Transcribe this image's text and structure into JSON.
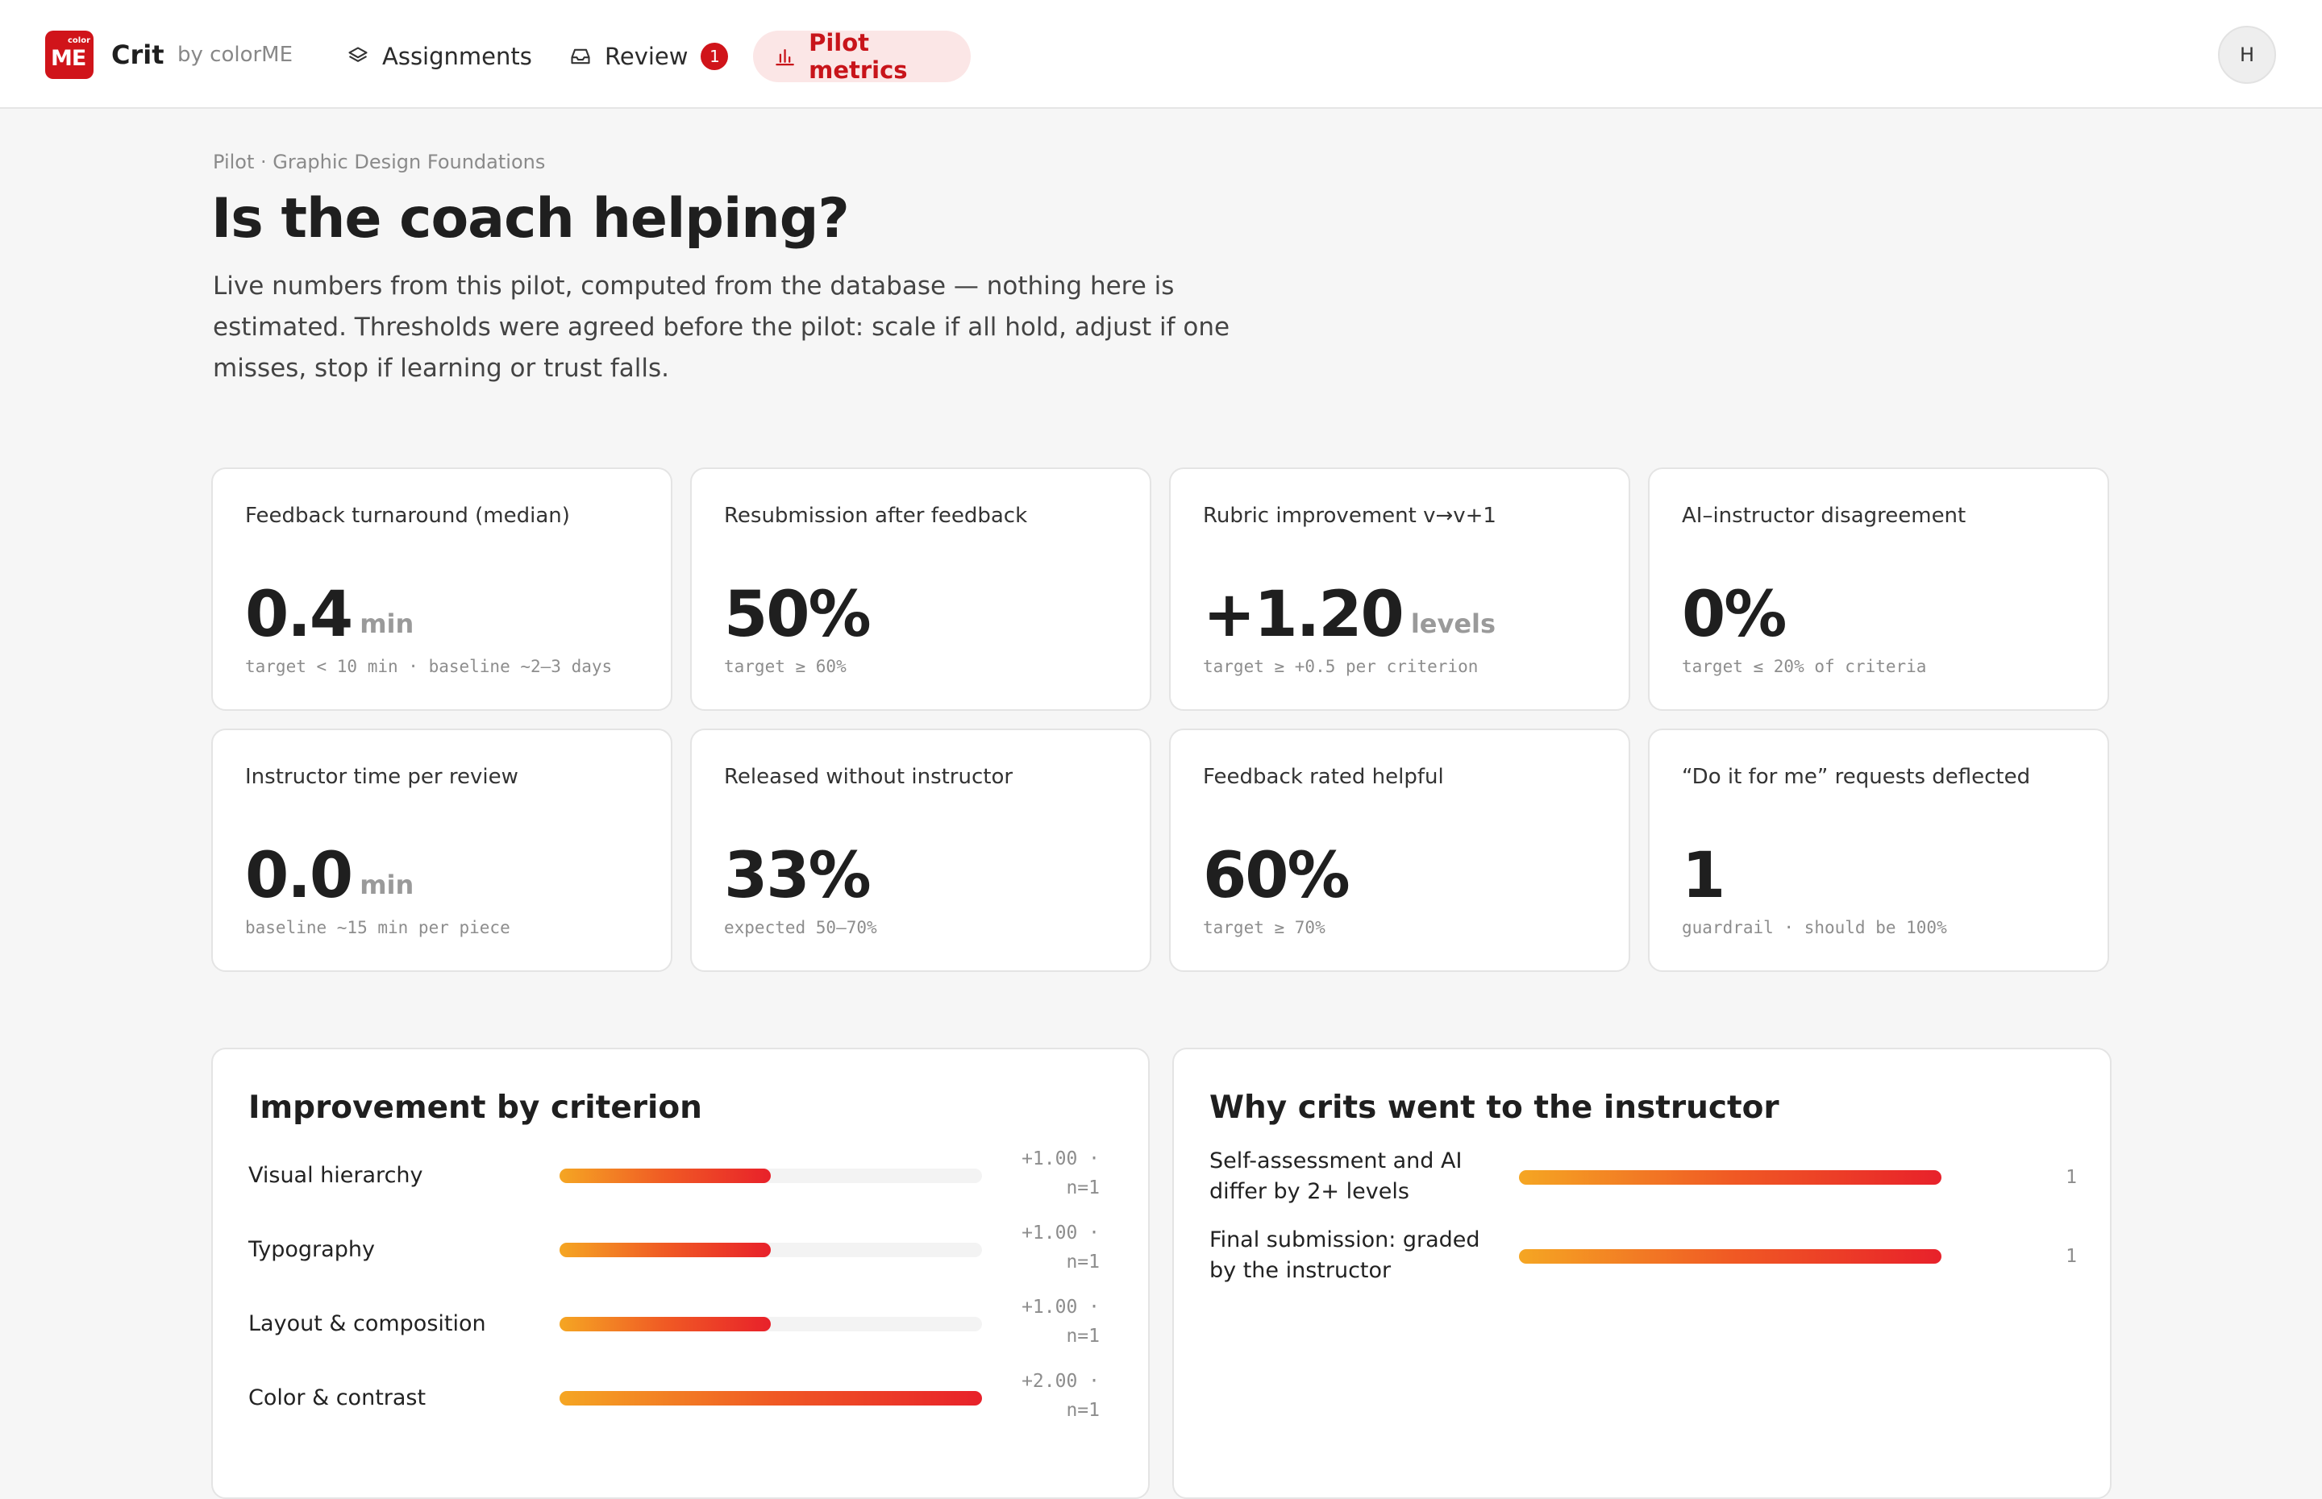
{
  "brand": {
    "logo_small": "color",
    "logo_big": "ME",
    "app_name": "Crit",
    "by_line": "by colorME",
    "accent_color": "#d0141a"
  },
  "nav": {
    "assignments": {
      "label": "Assignments",
      "icon": "layers-icon"
    },
    "review": {
      "label": "Review",
      "icon": "inbox-icon",
      "badge": "1"
    },
    "pilot_metrics": {
      "label": "Pilot metrics",
      "icon": "bar-chart-icon",
      "active": true
    }
  },
  "user": {
    "avatar_initial": "H"
  },
  "header": {
    "breadcrumb": "Pilot · Graphic Design Foundations",
    "title": "Is the coach helping?",
    "intro": "Live numbers from this pilot, computed from the database — nothing here is estimated. Thresholds were agreed before the pilot: scale if all hold, adjust if one misses, stop if learning or trust falls."
  },
  "metrics": [
    {
      "label": "Feedback turnaround (median)",
      "value": "0.4",
      "unit": "min",
      "note": "target < 10 min · baseline ~2–3 days"
    },
    {
      "label": "Resubmission after feedback",
      "value": "50%",
      "unit": "",
      "note": "target ≥ 60%"
    },
    {
      "label": "Rubric improvement v→v+1",
      "value": "+1.20",
      "unit": "levels",
      "note": "target ≥ +0.5 per criterion"
    },
    {
      "label": "AI–instructor disagreement",
      "value": "0%",
      "unit": "",
      "note": "target ≤ 20% of criteria"
    },
    {
      "label": "Instructor time per review",
      "value": "0.0",
      "unit": "min",
      "note": "baseline ~15 min per piece"
    },
    {
      "label": "Released without instructor",
      "value": "33%",
      "unit": "",
      "note": "expected 50–70%"
    },
    {
      "label": "Feedback rated helpful",
      "value": "60%",
      "unit": "",
      "note": "target ≥ 70%"
    },
    {
      "label": "“Do it for me” requests deflected",
      "value": "1",
      "unit": "",
      "note": "guardrail · should be 100%"
    }
  ],
  "improvement": {
    "title": "Improvement by criterion",
    "rows": [
      {
        "label": "Visual hierarchy",
        "value_line1": "+1.00 ·",
        "value_line2": "n=1",
        "level": 1.0
      },
      {
        "label": "Typography",
        "value_line1": "+1.00 ·",
        "value_line2": "n=1",
        "level": 1.0
      },
      {
        "label": "Layout & composition",
        "value_line1": "+1.00 ·",
        "value_line2": "n=1",
        "level": 1.0
      },
      {
        "label": "Color & contrast",
        "value_line1": "+2.00 ·",
        "value_line2": "n=1",
        "level": 2.0
      }
    ],
    "max_level": 2.0
  },
  "escalation": {
    "title": "Why crits went to the instructor",
    "rows": [
      {
        "label": "Self-assessment and AI differ by 2+ levels",
        "count": "1",
        "level": 1
      },
      {
        "label": "Final submission: graded by the instructor",
        "count": "1",
        "level": 1
      }
    ],
    "max_level": 1
  }
}
